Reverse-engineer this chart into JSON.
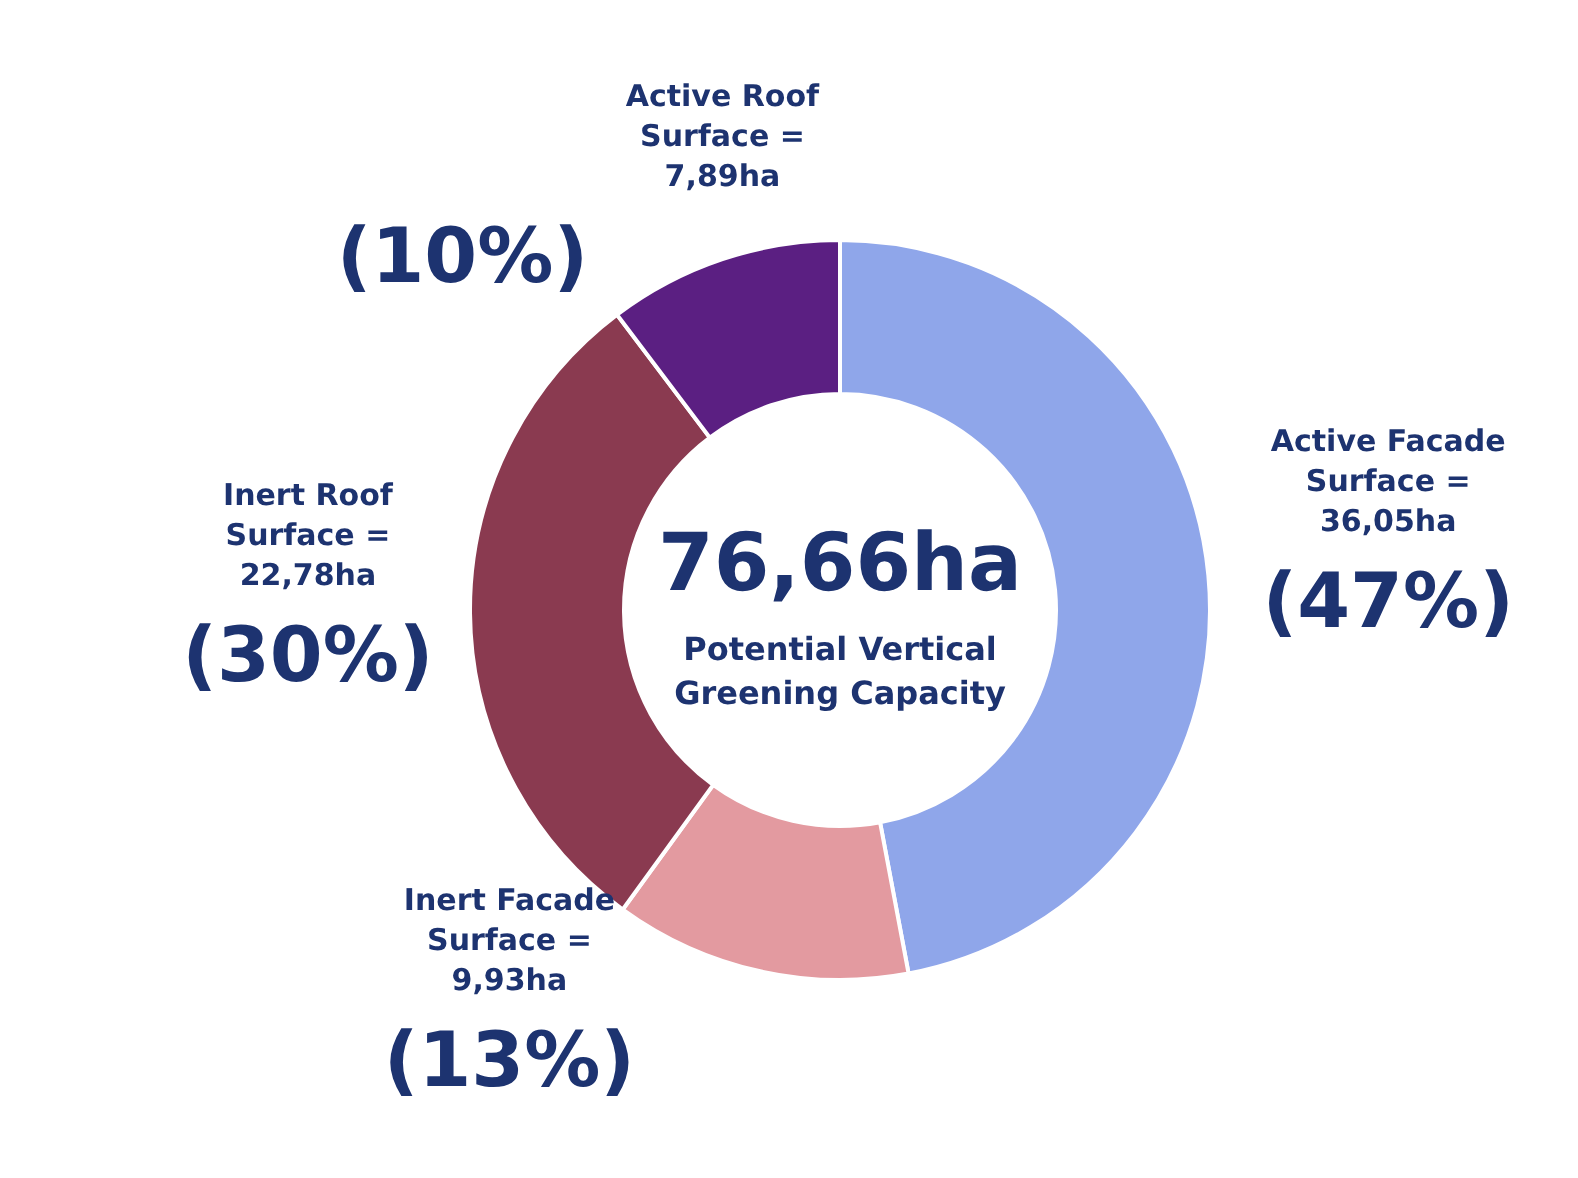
{
  "chart_data": {
    "type": "donut",
    "title": "76,66ha",
    "subtitle": "Potential Vertical Greening Capacity",
    "categories": [
      "Active Facade Surface =",
      "Inert Facade Surface =",
      "Inert Roof Surface =",
      "Active Roof Surface ="
    ],
    "values": [
      36.05,
      9.93,
      22.78,
      7.89
    ],
    "value_labels": [
      "36,05ha",
      "9,93ha",
      "22,78ha",
      "7,89ha"
    ],
    "colors": [
      "#8fa6ea",
      "#e39aa0",
      "#8a3a50",
      "#5b1f82"
    ],
    "annotations": [
      {
        "text": "(47%)",
        "x": "Active Facade Surface ="
      },
      {
        "text": "(13%)",
        "x": "Inert Facade Surface ="
      },
      {
        "text": "(30%)",
        "x": "Inert Roof Surface ="
      },
      {
        "text": "(10%)",
        "x": "Active Roof Surface ="
      }
    ]
  }
}
